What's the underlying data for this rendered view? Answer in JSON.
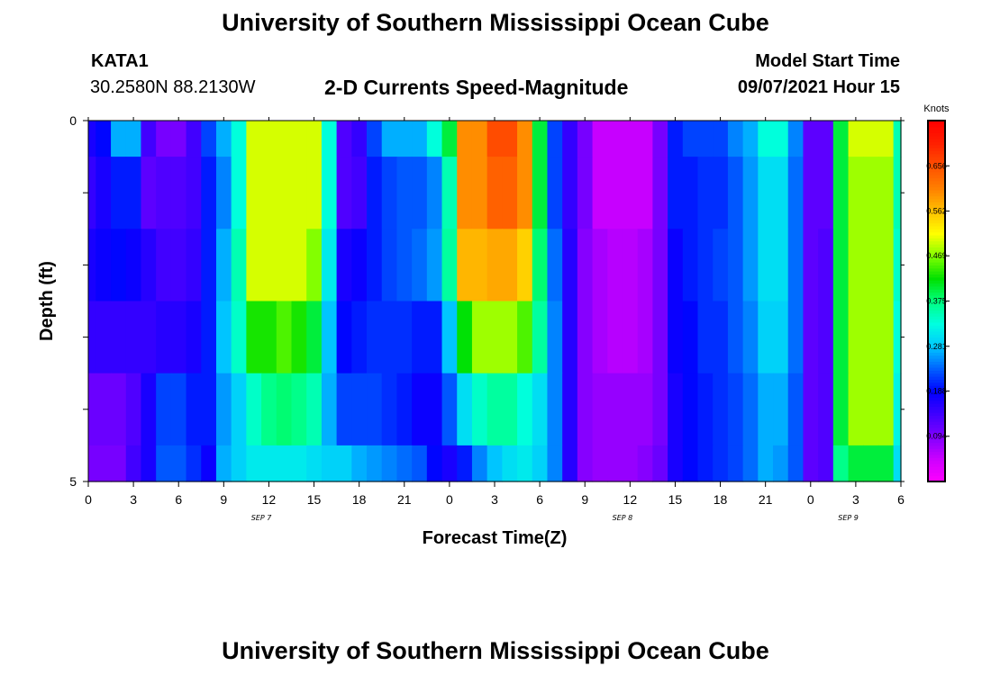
{
  "header": {
    "title": "University of Southern Mississippi Ocean Cube",
    "station": "KATA1",
    "coords": "30.2580N  88.2130W",
    "subtitle": "2-D Currents Speed-Magnitude",
    "model_label": "Model Start Time",
    "model_time": "09/07/2021 Hour 15"
  },
  "footer": {
    "title": "University of Southern Mississippi Ocean Cube"
  },
  "chart_data": {
    "type": "heatmap",
    "xlabel": "Forecast Time(Z)",
    "ylabel": "Depth (ft)",
    "x_ticks": [
      "0",
      "3",
      "6",
      "9",
      "12",
      "15",
      "18",
      "21",
      "0",
      "3",
      "6",
      "9",
      "12",
      "15",
      "18",
      "21",
      "0",
      "3",
      "6"
    ],
    "day_labels": [
      {
        "label": "SEP 7",
        "hour": 11.5
      },
      {
        "label": "SEP 8",
        "hour": 35.5
      },
      {
        "label": "SEP 9",
        "hour": 50.5
      }
    ],
    "x_range_hours": [
      0,
      54
    ],
    "y_ticks": [
      "0",
      "5"
    ],
    "y_range_ft": [
      0,
      5
    ],
    "colorbar": {
      "title": "Knots",
      "ticks": [
        "0.656",
        "0.562",
        "0.469",
        "0.375",
        "0.281",
        "0.188",
        "0.094"
      ],
      "min": 0.0,
      "max": 0.75,
      "colors": [
        "#ff00ff",
        "#cc00ff",
        "#8000ff",
        "#4000ff",
        "#0000ff",
        "#0060ff",
        "#00c8ff",
        "#00ffe0",
        "#00ff80",
        "#00e000",
        "#80ff00",
        "#ffff00",
        "#ffc000",
        "#ff8000",
        "#ff5000",
        "#ff2000",
        "#ff0000"
      ]
    },
    "depth_bands_ft": [
      [
        0,
        0.5
      ],
      [
        0.5,
        1.5
      ],
      [
        1.5,
        2.5
      ],
      [
        2.5,
        3.5
      ],
      [
        3.5,
        4.5
      ],
      [
        4.5,
        5
      ]
    ],
    "hours": [
      0,
      1,
      2,
      3,
      4,
      5,
      6,
      7,
      8,
      9,
      10,
      11,
      12,
      13,
      14,
      15,
      16,
      17,
      18,
      19,
      20,
      21,
      22,
      23,
      24,
      25,
      26,
      27,
      28,
      29,
      30,
      31,
      32,
      33,
      34,
      35,
      36,
      37,
      38,
      39,
      40,
      41,
      42,
      43,
      44,
      45,
      46,
      47,
      48,
      49,
      50,
      51,
      52,
      53,
      54
    ],
    "speed_knots": [
      [
        0.17,
        0.19,
        0.27,
        0.27,
        0.14,
        0.1,
        0.1,
        0.14,
        0.22,
        0.27,
        0.33,
        0.5,
        0.5,
        0.5,
        0.5,
        0.5,
        0.33,
        0.13,
        0.15,
        0.22,
        0.27,
        0.27,
        0.27,
        0.33,
        0.4,
        0.6,
        0.6,
        0.66,
        0.66,
        0.6,
        0.4,
        0.22,
        0.15,
        0.1,
        0.05,
        0.05,
        0.05,
        0.05,
        0.1,
        0.2,
        0.22,
        0.22,
        0.22,
        0.25,
        0.27,
        0.33,
        0.33,
        0.25,
        0.12,
        0.12,
        0.4,
        0.5,
        0.5,
        0.5,
        0.35
      ],
      [
        0.15,
        0.17,
        0.2,
        0.2,
        0.12,
        0.13,
        0.13,
        0.14,
        0.2,
        0.25,
        0.33,
        0.5,
        0.5,
        0.5,
        0.5,
        0.5,
        0.33,
        0.13,
        0.14,
        0.2,
        0.22,
        0.23,
        0.23,
        0.25,
        0.35,
        0.6,
        0.6,
        0.64,
        0.64,
        0.6,
        0.4,
        0.22,
        0.15,
        0.1,
        0.05,
        0.05,
        0.05,
        0.05,
        0.1,
        0.2,
        0.2,
        0.21,
        0.21,
        0.23,
        0.26,
        0.3,
        0.3,
        0.24,
        0.12,
        0.12,
        0.4,
        0.48,
        0.48,
        0.48,
        0.35
      ],
      [
        0.17,
        0.18,
        0.19,
        0.18,
        0.16,
        0.14,
        0.14,
        0.15,
        0.2,
        0.27,
        0.35,
        0.5,
        0.5,
        0.5,
        0.5,
        0.47,
        0.31,
        0.17,
        0.18,
        0.2,
        0.22,
        0.23,
        0.24,
        0.26,
        0.36,
        0.57,
        0.57,
        0.58,
        0.58,
        0.55,
        0.38,
        0.24,
        0.16,
        0.09,
        0.07,
        0.06,
        0.06,
        0.07,
        0.1,
        0.18,
        0.2,
        0.21,
        0.22,
        0.23,
        0.26,
        0.3,
        0.3,
        0.24,
        0.12,
        0.13,
        0.4,
        0.48,
        0.48,
        0.48,
        0.34
      ],
      [
        0.15,
        0.15,
        0.15,
        0.15,
        0.15,
        0.16,
        0.16,
        0.17,
        0.2,
        0.28,
        0.34,
        0.43,
        0.43,
        0.45,
        0.43,
        0.4,
        0.28,
        0.19,
        0.2,
        0.21,
        0.21,
        0.21,
        0.2,
        0.2,
        0.28,
        0.42,
        0.48,
        0.48,
        0.48,
        0.45,
        0.36,
        0.25,
        0.16,
        0.09,
        0.07,
        0.06,
        0.06,
        0.07,
        0.1,
        0.18,
        0.19,
        0.21,
        0.21,
        0.23,
        0.25,
        0.29,
        0.29,
        0.24,
        0.12,
        0.13,
        0.4,
        0.48,
        0.48,
        0.48,
        0.33
      ],
      [
        0.11,
        0.11,
        0.11,
        0.13,
        0.17,
        0.22,
        0.22,
        0.2,
        0.2,
        0.26,
        0.29,
        0.34,
        0.37,
        0.38,
        0.37,
        0.35,
        0.27,
        0.22,
        0.22,
        0.22,
        0.21,
        0.2,
        0.18,
        0.18,
        0.23,
        0.3,
        0.34,
        0.36,
        0.36,
        0.33,
        0.3,
        0.25,
        0.16,
        0.09,
        0.08,
        0.08,
        0.08,
        0.08,
        0.1,
        0.17,
        0.19,
        0.2,
        0.21,
        0.22,
        0.24,
        0.27,
        0.27,
        0.23,
        0.12,
        0.13,
        0.4,
        0.48,
        0.48,
        0.48,
        0.32
      ],
      [
        0.1,
        0.1,
        0.1,
        0.14,
        0.17,
        0.23,
        0.23,
        0.21,
        0.18,
        0.27,
        0.29,
        0.31,
        0.31,
        0.31,
        0.31,
        0.3,
        0.29,
        0.29,
        0.27,
        0.26,
        0.25,
        0.24,
        0.23,
        0.19,
        0.17,
        0.2,
        0.25,
        0.28,
        0.3,
        0.31,
        0.29,
        0.25,
        0.16,
        0.09,
        0.08,
        0.08,
        0.08,
        0.09,
        0.11,
        0.17,
        0.19,
        0.2,
        0.21,
        0.22,
        0.24,
        0.27,
        0.26,
        0.23,
        0.12,
        0.13,
        0.37,
        0.4,
        0.4,
        0.4,
        0.3
      ]
    ]
  }
}
